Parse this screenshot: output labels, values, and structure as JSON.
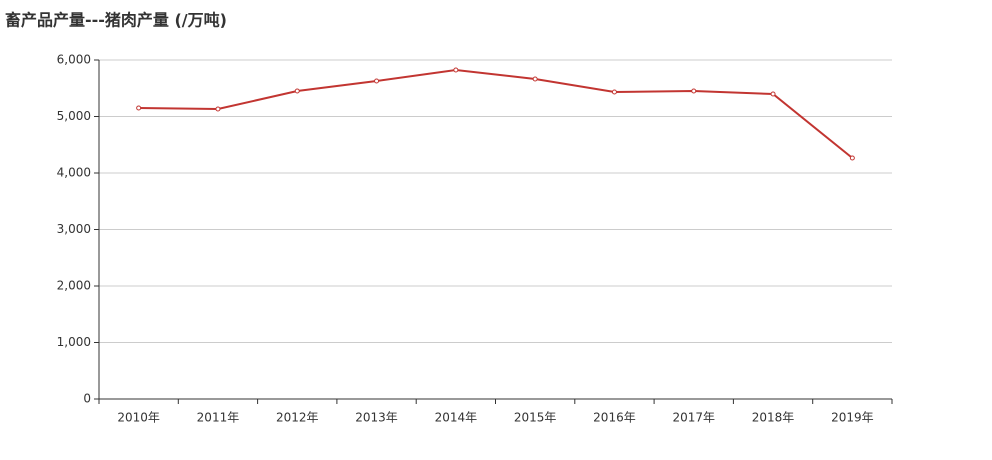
{
  "chart_data": {
    "type": "line",
    "title": "畜产品产量---猪肉产量 (/万吨)",
    "categories": [
      "2010年",
      "2011年",
      "2012年",
      "2013年",
      "2014年",
      "2015年",
      "2016年",
      "2017年",
      "2018年",
      "2019年"
    ],
    "values": [
      5150,
      5133,
      5451,
      5628,
      5823,
      5664,
      5434,
      5451,
      5398,
      4265
    ],
    "color": "#c23531",
    "ylim": [
      0,
      6000
    ],
    "yticks": [
      0,
      {
        "value": 1000,
        "label": "1,000"
      },
      {
        "value": 2000,
        "label": "2,000"
      },
      {
        "value": 3000,
        "label": "3,000"
      },
      {
        "value": 4000,
        "label": "4,000"
      },
      {
        "value": 5000,
        "label": "5,000"
      },
      {
        "value": 6000,
        "label": "6,000"
      }
    ],
    "grid": true
  }
}
